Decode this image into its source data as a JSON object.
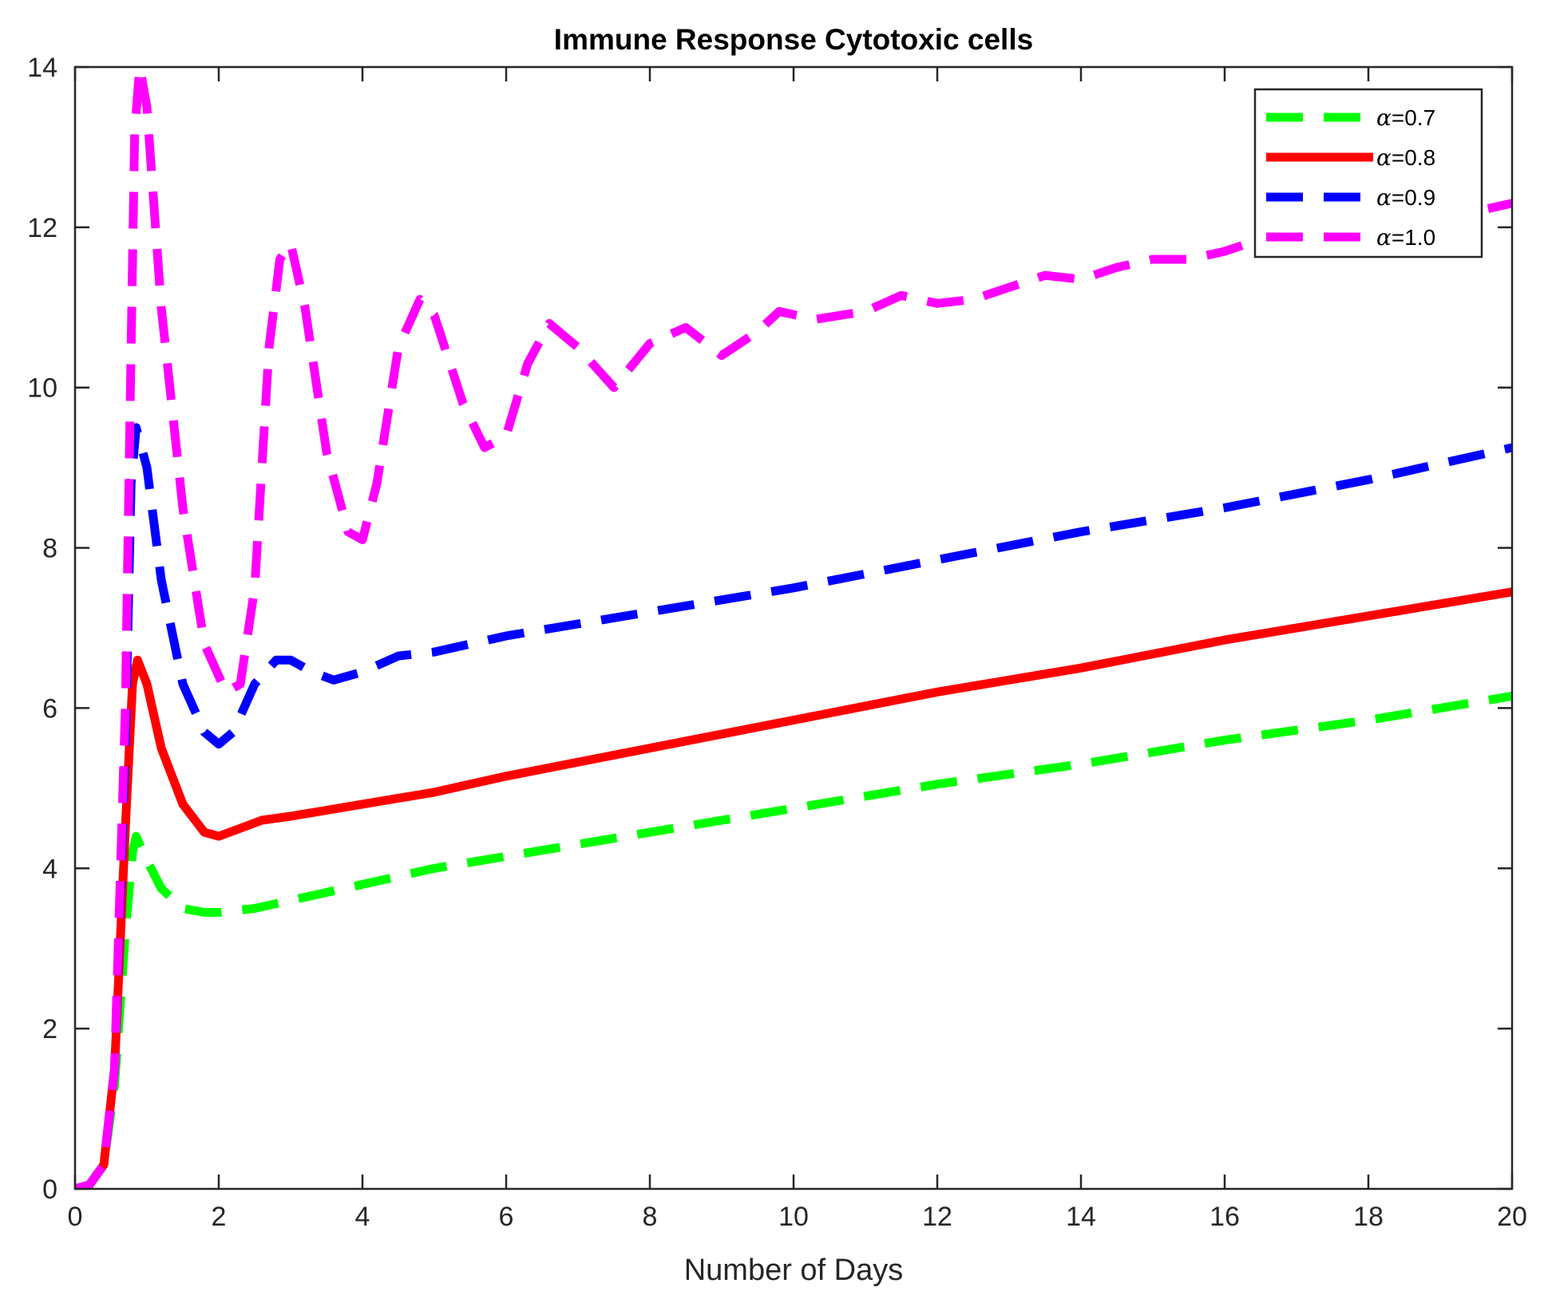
{
  "chart_data": {
    "type": "line",
    "title": "Immune Response Cytotoxic cells",
    "xlabel": "Number of Days",
    "ylabel": "",
    "xlim": [
      0,
      20
    ],
    "ylim": [
      0,
      14
    ],
    "xticks": [
      "0",
      "2",
      "4",
      "6",
      "8",
      "10",
      "12",
      "14",
      "16",
      "18",
      "20"
    ],
    "yticks": [
      "0",
      "2",
      "4",
      "6",
      "8",
      "10",
      "12",
      "14"
    ],
    "grid": false,
    "legend_position": "top-right",
    "series": [
      {
        "name": "α=0.7",
        "symbol": "α",
        "value_text": "=0.7",
        "color": "#00ff00",
        "style": "dashed",
        "x": [
          0,
          0.2,
          0.4,
          0.55,
          0.7,
          0.8,
          0.85,
          1.0,
          1.2,
          1.5,
          1.8,
          2.0,
          2.5,
          3.0,
          4.0,
          5.0,
          6.0,
          8.0,
          10.0,
          12.0,
          14.0,
          16.0,
          18.0,
          20.0
        ],
        "y": [
          0,
          0.05,
          0.3,
          1.3,
          3.2,
          4.2,
          4.4,
          4.1,
          3.75,
          3.5,
          3.45,
          3.45,
          3.5,
          3.6,
          3.8,
          4.0,
          4.15,
          4.45,
          4.75,
          5.05,
          5.3,
          5.6,
          5.85,
          6.15
        ]
      },
      {
        "name": "α=0.8",
        "symbol": "α",
        "value_text": "=0.8",
        "color": "#ff0000",
        "style": "solid",
        "x": [
          0,
          0.2,
          0.4,
          0.55,
          0.7,
          0.8,
          0.87,
          1.0,
          1.2,
          1.5,
          1.8,
          2.0,
          2.3,
          2.6,
          3.0,
          4.0,
          5.0,
          6.0,
          8.0,
          10.0,
          12.0,
          14.0,
          16.0,
          18.0,
          20.0
        ],
        "y": [
          0,
          0.05,
          0.3,
          1.5,
          4.5,
          6.3,
          6.6,
          6.3,
          5.5,
          4.8,
          4.45,
          4.4,
          4.5,
          4.6,
          4.65,
          4.8,
          4.95,
          5.15,
          5.5,
          5.85,
          6.2,
          6.5,
          6.85,
          7.15,
          7.45
        ]
      },
      {
        "name": "α=0.9",
        "symbol": "α",
        "value_text": "=0.9",
        "color": "#0000ff",
        "style": "dashed",
        "x": [
          0,
          0.2,
          0.4,
          0.55,
          0.7,
          0.78,
          0.85,
          1.0,
          1.2,
          1.5,
          1.8,
          2.0,
          2.2,
          2.5,
          2.8,
          3.0,
          3.3,
          3.6,
          4.0,
          4.5,
          5.0,
          6.0,
          8.0,
          10.0,
          12.0,
          14.0,
          16.0,
          18.0,
          20.0
        ],
        "y": [
          0,
          0.05,
          0.3,
          1.5,
          5.5,
          8.8,
          9.5,
          9.0,
          7.6,
          6.3,
          5.7,
          5.55,
          5.7,
          6.3,
          6.6,
          6.6,
          6.45,
          6.35,
          6.45,
          6.65,
          6.7,
          6.9,
          7.2,
          7.5,
          7.85,
          8.2,
          8.5,
          8.85,
          9.25
        ]
      },
      {
        "name": "α=1.0",
        "symbol": "α",
        "value_text": "=1.0",
        "color": "#ff00ff",
        "style": "dashed",
        "x": [
          0,
          0.2,
          0.4,
          0.55,
          0.7,
          0.78,
          0.83,
          0.9,
          1.0,
          1.2,
          1.5,
          1.8,
          2.1,
          2.3,
          2.5,
          2.7,
          2.85,
          3.0,
          3.2,
          3.5,
          3.8,
          4.0,
          4.2,
          4.5,
          4.8,
          5.0,
          5.4,
          5.7,
          6.0,
          6.3,
          6.6,
          7.0,
          7.5,
          8.0,
          8.5,
          9.0,
          9.5,
          9.8,
          10.3,
          11.0,
          11.5,
          12.0,
          12.5,
          13.0,
          13.5,
          14.0,
          14.5,
          15.0,
          15.5,
          16.0,
          16.5,
          17.0,
          17.5,
          18.0,
          18.5,
          19.0,
          19.5,
          20.0
        ],
        "y": [
          0,
          0.05,
          0.3,
          1.5,
          6.0,
          10.5,
          13.2,
          14.0,
          13.5,
          11.0,
          8.5,
          6.8,
          6.2,
          6.3,
          7.5,
          10.5,
          11.6,
          11.8,
          11.0,
          9.2,
          8.2,
          8.1,
          8.8,
          10.5,
          11.1,
          10.9,
          9.8,
          9.25,
          9.4,
          10.3,
          10.8,
          10.5,
          10.0,
          10.55,
          10.75,
          10.4,
          10.7,
          10.95,
          10.85,
          10.95,
          11.15,
          11.05,
          11.1,
          11.25,
          11.4,
          11.35,
          11.5,
          11.6,
          11.6,
          11.7,
          11.85,
          11.95,
          12.0,
          12.1,
          12.15,
          12.1,
          12.2,
          12.3
        ]
      }
    ]
  }
}
